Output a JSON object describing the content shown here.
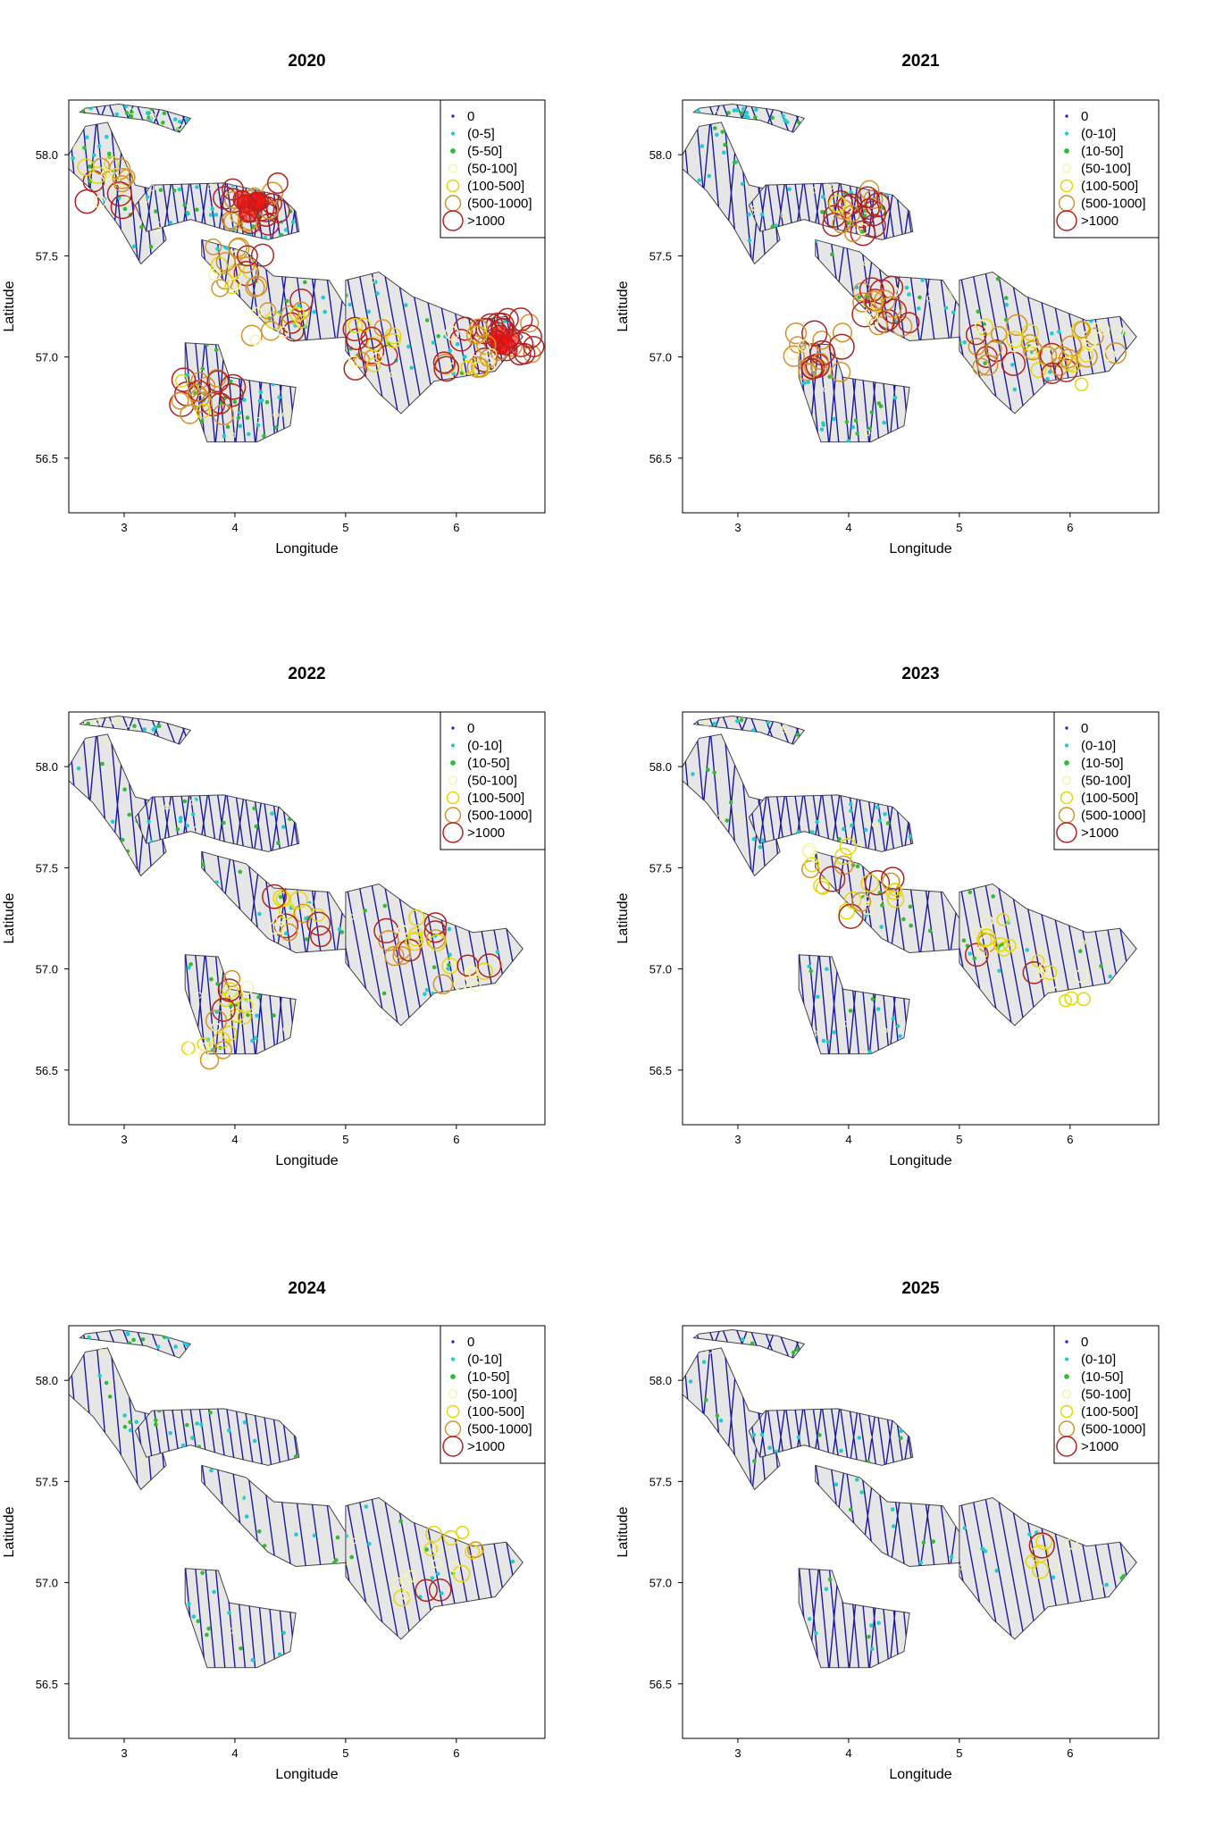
{
  "figure": {
    "x_axis_label": "Longitude",
    "y_axis_label": "Latitude",
    "x_ticks": [
      3,
      4,
      5,
      6
    ],
    "y_ticks": [
      "56.5",
      "57.0",
      "57.5",
      "58.0"
    ],
    "lon_range": [
      2.5,
      6.8
    ],
    "lat_range": [
      56.23,
      58.27
    ]
  },
  "colors": {
    "survey_area_fill": "#e6e6e6",
    "survey_area_border": "#444444",
    "transect_line": "#1a1a9e",
    "zero_point": "#2b2bd6",
    "class_1": "#22cccc",
    "class_2": "#33bb33",
    "class_3": "#f5f5b0",
    "class_4": "#e6d800",
    "class_5": "#d4922a",
    "class_6": "#b22222",
    "dense_fill": "#ee1111"
  },
  "panels": [
    {
      "year": "2020",
      "legend": [
        "0",
        "(0-5]",
        "(5-50]",
        "(50-100]",
        "(100-500]",
        "(500-1000]",
        ">1000"
      ]
    },
    {
      "year": "2021",
      "legend": [
        "0",
        "(0-10]",
        "(10-50]",
        "(50-100]",
        "(100-500]",
        "(500-1000]",
        ">1000"
      ]
    },
    {
      "year": "2022",
      "legend": [
        "0",
        "(0-10]",
        "(10-50]",
        "(50-100]",
        "(100-500]",
        "(500-1000]",
        ">1000"
      ]
    },
    {
      "year": "2023",
      "legend": [
        "0",
        "(0-10]",
        "(10-50]",
        "(50-100]",
        "(100-500]",
        "(500-1000]",
        ">1000"
      ]
    },
    {
      "year": "2024",
      "legend": [
        "0",
        "(0-10]",
        "(10-50]",
        "(50-100]",
        "(100-500]",
        "(500-1000]",
        ">1000"
      ]
    },
    {
      "year": "2025",
      "legend": [
        "0",
        "(0-10]",
        "(10-50]",
        "(50-100]",
        "(100-500]",
        "(500-1000]",
        ">1000"
      ]
    }
  ]
}
